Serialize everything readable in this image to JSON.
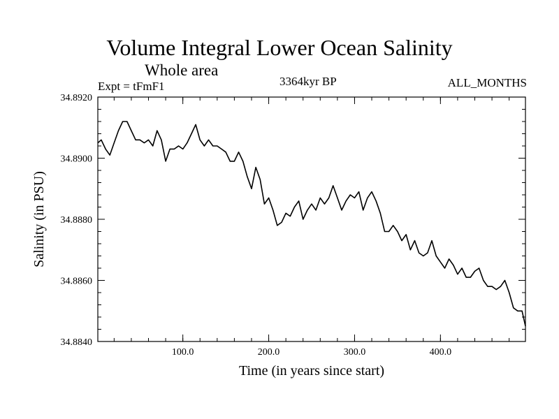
{
  "chart_data": {
    "type": "line",
    "title": "Volume Integral Lower Ocean Salinity",
    "subtitle": "Whole area",
    "annotations": {
      "experiment": "Expt = tFmF1",
      "period": "3364kyr BP",
      "months": "ALL_MONTHS"
    },
    "xlabel": "Time (in years since start)",
    "ylabel": "Salinity (in PSU)",
    "xlim": [
      1,
      499
    ],
    "ylim": [
      34.884,
      34.892
    ],
    "xticks": [
      100,
      200,
      300,
      400
    ],
    "xtick_labels": [
      "100.0",
      "200.0",
      "300.0",
      "400.0"
    ],
    "yticks": [
      34.884,
      34.886,
      34.888,
      34.89,
      34.892
    ],
    "ytick_labels": [
      "34.8840",
      "34.8860",
      "34.8880",
      "34.8900",
      "34.8920"
    ],
    "series": [
      {
        "name": "Salinity",
        "color": "#000000",
        "x": [
          1,
          5,
          10,
          15,
          20,
          25,
          30,
          35,
          40,
          45,
          50,
          55,
          60,
          65,
          70,
          75,
          80,
          85,
          90,
          95,
          100,
          105,
          110,
          115,
          120,
          125,
          130,
          135,
          140,
          145,
          150,
          155,
          160,
          165,
          170,
          175,
          180,
          185,
          190,
          195,
          200,
          205,
          210,
          215,
          220,
          225,
          230,
          235,
          240,
          245,
          250,
          255,
          260,
          265,
          270,
          275,
          280,
          285,
          290,
          295,
          300,
          305,
          310,
          315,
          320,
          325,
          330,
          335,
          340,
          345,
          350,
          355,
          360,
          365,
          370,
          375,
          380,
          385,
          390,
          395,
          400,
          405,
          410,
          415,
          420,
          425,
          430,
          435,
          440,
          445,
          450,
          455,
          460,
          465,
          470,
          475,
          480,
          485,
          490,
          495,
          499
        ],
        "values": [
          34.8905,
          34.8906,
          34.8903,
          34.8901,
          34.8905,
          34.8909,
          34.8912,
          34.8912,
          34.8909,
          34.8906,
          34.8906,
          34.8905,
          34.8906,
          34.8904,
          34.8909,
          34.8906,
          34.8899,
          34.8903,
          34.8903,
          34.8904,
          34.8903,
          34.8905,
          34.8908,
          34.8911,
          34.8906,
          34.8904,
          34.8906,
          34.8904,
          34.8904,
          34.8903,
          34.8902,
          34.8899,
          34.8899,
          34.8902,
          34.8899,
          34.8894,
          34.889,
          34.8897,
          34.8893,
          34.8885,
          34.8887,
          34.8883,
          34.8878,
          34.8879,
          34.8882,
          34.8881,
          34.8884,
          34.8886,
          34.888,
          34.8883,
          34.8885,
          34.8883,
          34.8887,
          34.8885,
          34.8887,
          34.8891,
          34.8887,
          34.8883,
          34.8886,
          34.8888,
          34.8887,
          34.8889,
          34.8883,
          34.8887,
          34.8889,
          34.8886,
          34.8882,
          34.8876,
          34.8876,
          34.8878,
          34.8876,
          34.8873,
          34.8875,
          34.887,
          34.8873,
          34.8869,
          34.8868,
          34.8869,
          34.8873,
          34.8868,
          34.8866,
          34.8864,
          34.8867,
          34.8865,
          34.8862,
          34.8864,
          34.8861,
          34.8861,
          34.8863,
          34.8864,
          34.886,
          34.8858,
          34.8858,
          34.8857,
          34.8858,
          34.886,
          34.8856,
          34.8851,
          34.885,
          34.885,
          34.8845
        ]
      }
    ]
  }
}
